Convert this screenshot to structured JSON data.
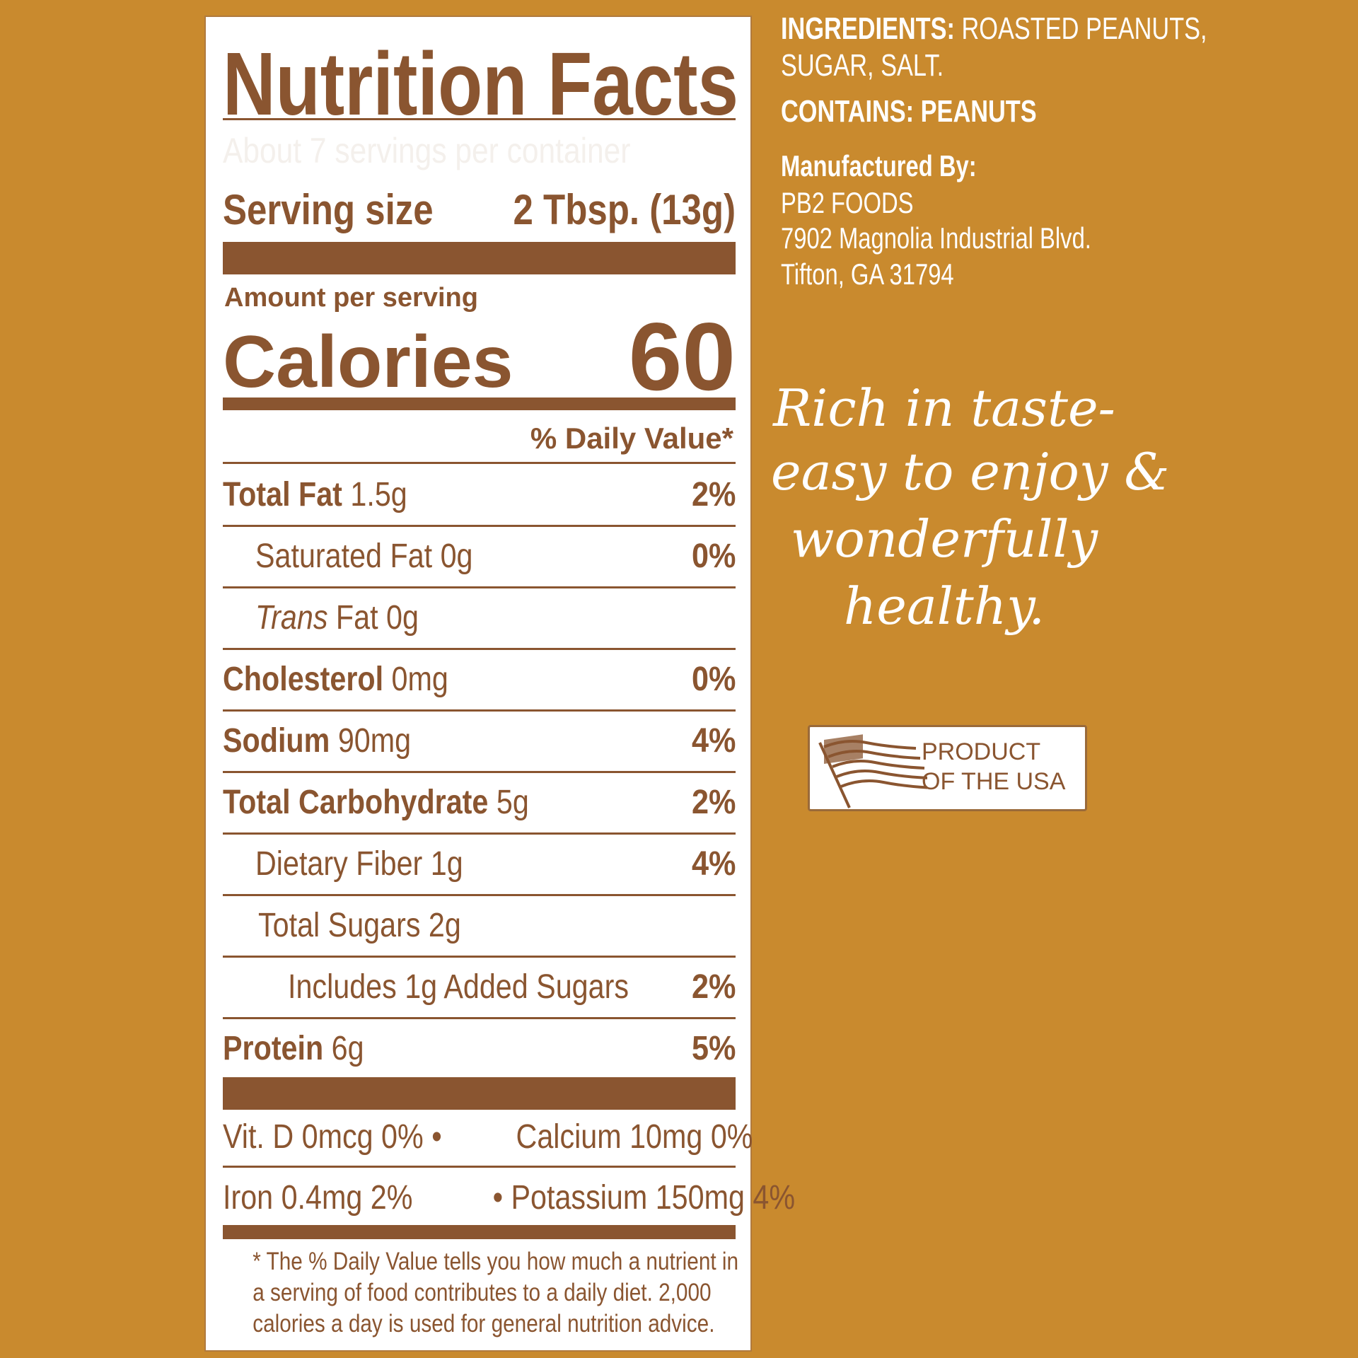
{
  "label": {
    "title": "Nutrition Facts",
    "servings": "About 7 servings per container",
    "serving_size_label": "Serving size",
    "serving_size_value": "2 Tbsp. (13g)",
    "amount_per_serving": "Amount per serving",
    "calories_label": "Calories",
    "calories_value": "60",
    "daily_value_header": "% Daily Value*",
    "nutrients": [
      {
        "name": "Total Fat",
        "amount": "1.5g",
        "dv": "2%"
      },
      {
        "name": "Saturated Fat",
        "amount": "0g",
        "dv": "0%"
      },
      {
        "name": "Trans",
        "amount": "Fat 0g",
        "dv": ""
      },
      {
        "name": "Cholesterol",
        "amount": "0mg",
        "dv": "0%"
      },
      {
        "name": "Sodium",
        "amount": "90mg",
        "dv": "4%"
      },
      {
        "name": "Total Carbohydrate",
        "amount": "5g",
        "dv": "2%"
      },
      {
        "name": "Dietary Fiber",
        "amount": "1g",
        "dv": "4%"
      },
      {
        "name": "Total Sugars",
        "amount": "2g",
        "dv": ""
      },
      {
        "name": "Includes 1g Added Sugars",
        "amount": "",
        "dv": "2%"
      },
      {
        "name": "Protein",
        "amount": "6g",
        "dv": "5%"
      }
    ],
    "vitamins_row1_left": "Vit. D 0mcg 0% •",
    "vitamins_row1_right": "Calcium 10mg 0%",
    "vitamins_row2_left": "Iron 0.4mg 2%",
    "vitamins_row2_right": "• Potassium 150mg 4%",
    "footnote": [
      "* The % Daily Value tells you how much a nutrient in",
      "a serving of food contributes to a daily diet. 2,000",
      "calories a day is used for general nutrition advice."
    ]
  },
  "info": {
    "ingredients_label": "INGREDIENTS:",
    "ingredients_line1": "ROASTED PEANUTS,",
    "ingredients_line2": "SUGAR, SALT.",
    "contains_label": "CONTAINS:",
    "contains_value": "PEANUTS",
    "manufactured_by": "Manufactured By:",
    "company": "PB2 FOODS",
    "address1": "7902 Magnolia Industrial Blvd.",
    "address2": "Tifton, GA 31794"
  },
  "tagline": [
    "Rich in taste-",
    "easy to enjoy &",
    "wonderfully",
    "healthy."
  ],
  "badge": {
    "line1": "PRODUCT",
    "line2": "OF THE USA",
    "icon": "us-flag-icon"
  },
  "colors": {
    "background": "#c98a2e",
    "brown": "#8a5530",
    "panel": "#ffffff"
  }
}
